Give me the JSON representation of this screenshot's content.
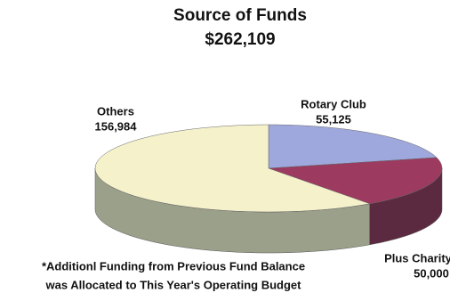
{
  "chart_data": {
    "type": "pie3d",
    "title": "Source of Funds",
    "subtitle": "$262,109",
    "categories": [
      "Rotary Club",
      "Plus Charity",
      "Others"
    ],
    "values": [
      55125,
      50000,
      156984
    ],
    "value_labels": [
      "55,125",
      "50,000",
      "156,984"
    ],
    "colors": [
      "#9ea8dc",
      "#9c3a60",
      "#f5f1cb"
    ],
    "side_colors": [
      "#6f78a8",
      "#5c2a40",
      "#9aa08a"
    ],
    "footnote": [
      "*Additionl Funding from Previous Fund Balance",
      "was Allocated to This Year's Operating Budget"
    ]
  }
}
